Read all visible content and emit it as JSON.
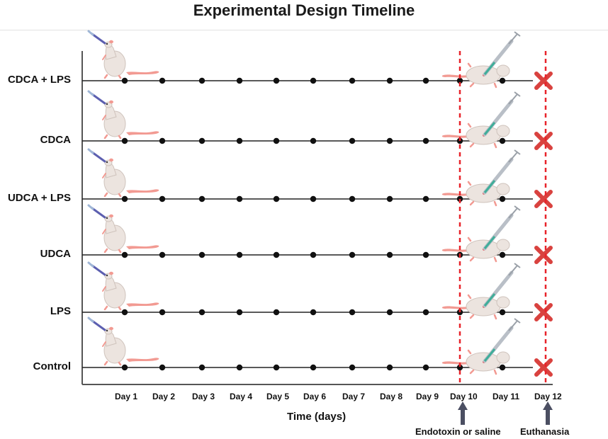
{
  "title": "Experimental Design Timeline",
  "groups": [
    {
      "label": "CDCA + LPS",
      "lps_injection": true
    },
    {
      "label": "CDCA",
      "lps_injection": true
    },
    {
      "label": "UDCA + LPS",
      "lps_injection": true
    },
    {
      "label": "UDCA",
      "lps_injection": true
    },
    {
      "label": "LPS",
      "lps_injection": true
    },
    {
      "label": "Control",
      "lps_injection": true
    }
  ],
  "days": [
    "Day 1",
    "Day 2",
    "Day 3",
    "Day 4",
    "Day 5",
    "Day 6",
    "Day 7",
    "Day 8",
    "Day 9",
    "Day 10",
    "Day 11",
    "Day 12"
  ],
  "x_axis_label": "Time (days)",
  "events": {
    "injection": {
      "label": "Endotoxin or saline",
      "day": "Day 10"
    },
    "euthanasia": {
      "label": "Euthanasia",
      "day": "Day 12"
    }
  },
  "icons": {
    "gavage_mouse": "mouse-oral-gavage-icon",
    "injected_mouse": "mouse-injection-icon",
    "end_marker": "red-cross-icon"
  },
  "colors": {
    "dashed_marker": "#e8232a",
    "cross": "#d9423f",
    "arrow": "#4b4f62",
    "mouse_body": "#ece4df",
    "mouse_pink": "#f29a92"
  }
}
